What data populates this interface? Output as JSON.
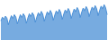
{
  "chart_data": {
    "type": "area",
    "categories": [
      null,
      null,
      null,
      null,
      null,
      null,
      null,
      null,
      null,
      null,
      null,
      null,
      null,
      null,
      null,
      null,
      null,
      null,
      null,
      null,
      null,
      null,
      null,
      null,
      null,
      null,
      null,
      null,
      null,
      null,
      null,
      null,
      null,
      null,
      null,
      null,
      null,
      null,
      null,
      null,
      null,
      null,
      null,
      null,
      null,
      null,
      null,
      null,
      null,
      null,
      null,
      null,
      null,
      null,
      null,
      null,
      null,
      null,
      null,
      null,
      null,
      null,
      null,
      null,
      null,
      null,
      null,
      null,
      null,
      null,
      null,
      null
    ],
    "values": [
      40,
      48,
      43,
      50,
      46,
      32,
      42,
      51,
      45,
      53,
      48,
      34,
      44,
      53,
      47,
      55,
      50,
      35,
      46,
      55,
      49,
      57,
      52,
      37,
      48,
      57,
      51,
      60,
      54,
      39,
      50,
      59,
      53,
      62,
      56,
      41,
      52,
      61,
      55,
      64,
      58,
      43,
      54,
      63,
      57,
      66,
      60,
      45,
      56,
      65,
      59,
      68,
      62,
      47,
      58,
      67,
      61,
      70,
      64,
      49,
      60,
      69,
      63,
      72,
      66,
      51,
      62,
      71,
      65,
      74,
      68,
      53
    ],
    "color": "#4a8fd6",
    "tick_labels": false
  }
}
